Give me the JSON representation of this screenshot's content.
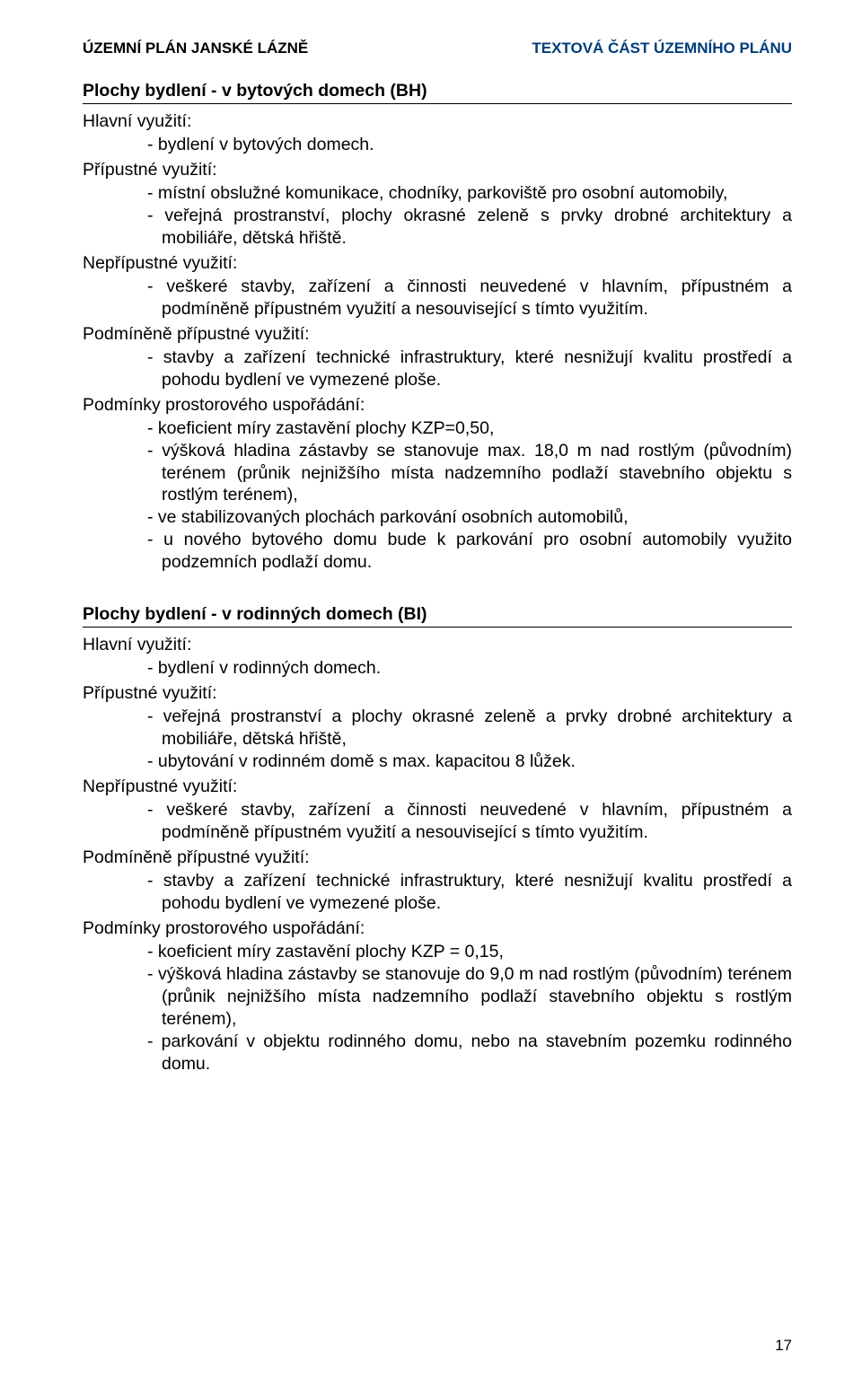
{
  "header": {
    "left": "ÚZEMNÍ PLÁN JANSKÉ LÁZNĚ",
    "right": "TEXTOVÁ ČÁST ÚZEMNÍHO PLÁNU"
  },
  "sections": [
    {
      "title": "Plochy bydlení - v bytových domech (BH)",
      "groups": [
        {
          "heading": "Hlavní využití:",
          "items": [
            "bydlení v bytových domech."
          ]
        },
        {
          "heading": "Přípustné využití:",
          "items": [
            "místní obslužné komunikace, chodníky, parkoviště pro osobní automobily,",
            "veřejná prostranství, plochy okrasné zeleně s prvky drobné architektury a mobiliáře, dětská hřiště."
          ]
        },
        {
          "heading": "Nepřípustné využití:",
          "items": [
            "veškeré stavby, zařízení a činnosti neuvedené v hlavním, přípustném a podmíněně přípustném využití a nesouvisející s tímto využitím."
          ]
        },
        {
          "heading": "Podmíněně přípustné využití:",
          "items": [
            "stavby a zařízení technické infrastruktury, které nesnižují kvalitu prostředí a pohodu bydlení ve vymezené ploše."
          ]
        },
        {
          "heading": "Podmínky prostorového uspořádání:",
          "items": [
            "koeficient míry zastavění plochy KZP=0,50,",
            "výšková hladina zástavby se stanovuje max. 18,0 m nad rostlým (původním) terénem (průnik nejnižšího místa nadzemního podlaží stavebního objektu s rostlým terénem),",
            "ve stabilizovaných plochách parkování osobních automobilů,",
            "u nového bytového domu bude k parkování pro osobní automobily využito podzemních podlaží domu."
          ]
        }
      ]
    },
    {
      "title": "Plochy bydlení - v rodinných domech (BI)",
      "groups": [
        {
          "heading": "Hlavní využití:",
          "items": [
            "bydlení v rodinných domech."
          ]
        },
        {
          "heading": "Přípustné využití:",
          "items": [
            "veřejná prostranství a plochy okrasné zeleně a prvky drobné architektury a mobiliáře, dětská hřiště,",
            "ubytování v rodinném domě s max. kapacitou 8 lůžek."
          ]
        },
        {
          "heading": "Nepřípustné využití:",
          "items": [
            "veškeré stavby, zařízení a činnosti neuvedené v hlavním, přípustném a podmíněně přípustném využití a nesouvisející s tímto využitím."
          ]
        },
        {
          "heading": "Podmíněně přípustné využití:",
          "items": [
            "stavby a zařízení technické infrastruktury, které nesnižují kvalitu prostředí a pohodu bydlení ve vymezené ploše."
          ]
        },
        {
          "heading": "Podmínky prostorového uspořádání:",
          "items": [
            "koeficient míry zastavění plochy KZP = 0,15,",
            "výšková hladina zástavby se stanovuje do 9,0 m nad rostlým (původním) terénem (průnik nejnižšího místa nadzemního podlaží stavebního objektu s rostlým terénem),",
            "parkování v objektu rodinného domu, nebo na stavebním pozemku rodinného domu."
          ]
        }
      ]
    }
  ],
  "pageNumber": "17"
}
